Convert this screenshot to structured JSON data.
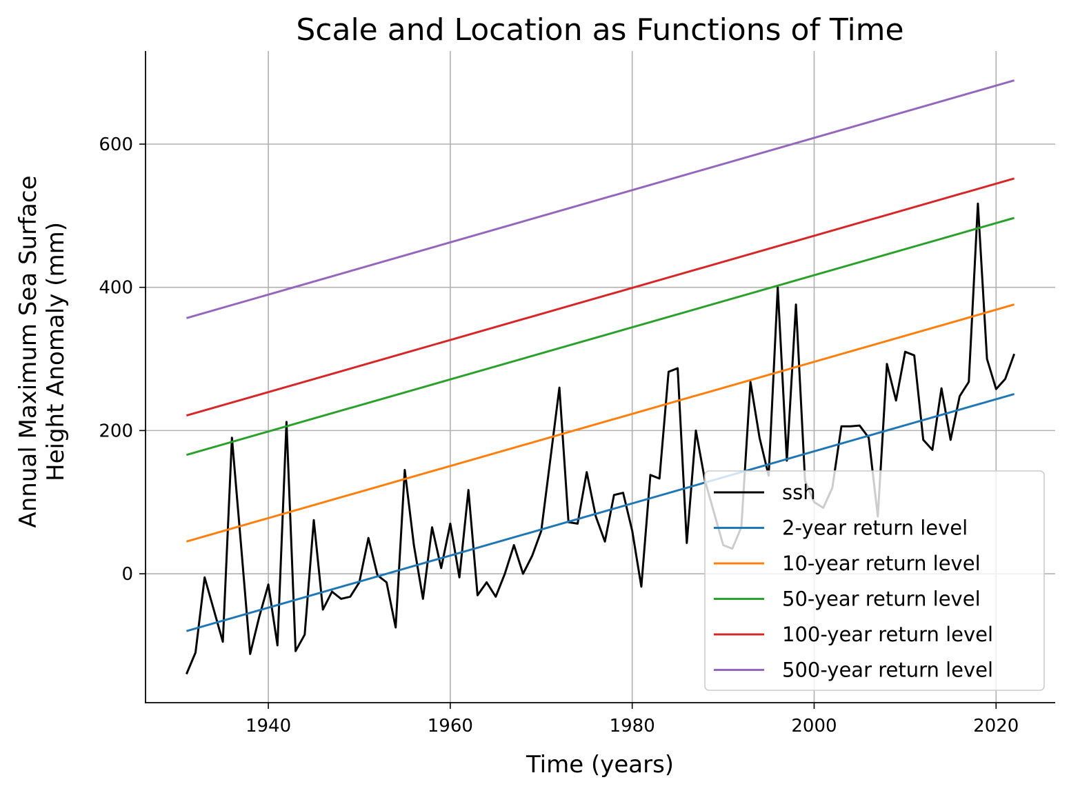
{
  "chart_data": {
    "type": "line",
    "title": "Scale and Location as Functions of Time",
    "xlabel": "Time (years)",
    "ylabel_lines": [
      "Annual Maximum Sea Surface",
      "Height Anomaly (mm)"
    ],
    "xlim": [
      1926.5,
      2026.5
    ],
    "ylim": [
      -180,
      730
    ],
    "xticks": [
      1940,
      1960,
      1980,
      2000,
      2020
    ],
    "yticks": [
      0,
      200,
      400,
      600
    ],
    "grid": true,
    "legend_position": "lower-right",
    "ssh": {
      "name": "ssh",
      "color": "#000000",
      "x": [
        1931,
        1932,
        1933,
        1934,
        1935,
        1936,
        1937,
        1938,
        1939,
        1940,
        1941,
        1942,
        1943,
        1944,
        1945,
        1946,
        1947,
        1948,
        1949,
        1950,
        1951,
        1952,
        1953,
        1954,
        1955,
        1956,
        1957,
        1958,
        1959,
        1960,
        1961,
        1962,
        1963,
        1964,
        1965,
        1966,
        1967,
        1968,
        1969,
        1970,
        1971,
        1972,
        1973,
        1974,
        1975,
        1976,
        1977,
        1978,
        1979,
        1980,
        1981,
        1982,
        1983,
        1984,
        1985,
        1986,
        1987,
        1988,
        1989,
        1990,
        1991,
        1992,
        1993,
        1994,
        1995,
        1996,
        1997,
        1998,
        1999,
        2000,
        2001,
        2002,
        2003,
        2004,
        2005,
        2006,
        2007,
        2008,
        2009,
        2010,
        2011,
        2012,
        2013,
        2014,
        2015,
        2016,
        2017,
        2018,
        2019,
        2020,
        2021,
        2022
      ],
      "y": [
        -140,
        -110,
        -5,
        -50,
        -95,
        190,
        40,
        -112,
        -60,
        -15,
        -100,
        212,
        -108,
        -85,
        75,
        -50,
        -25,
        -35,
        -32,
        -12,
        50,
        -2,
        -12,
        -75,
        145,
        40,
        -35,
        65,
        8,
        70,
        -5,
        117,
        -30,
        -12,
        -32,
        0,
        40,
        0,
        25,
        60,
        160,
        260,
        72,
        70,
        142,
        80,
        45,
        110,
        113,
        60,
        -18,
        138,
        133,
        282,
        287,
        43,
        200,
        130,
        85,
        40,
        35,
        65,
        268,
        190,
        137,
        400,
        158,
        376,
        130,
        100,
        92,
        120,
        206,
        206,
        207,
        190,
        80,
        293,
        242,
        310,
        305,
        187,
        173,
        259,
        187,
        248,
        268,
        517,
        300,
        258,
        272,
        307
      ]
    },
    "return_levels": [
      {
        "name": "2-year return level",
        "color": "#1f77b4",
        "x": [
          1931,
          2022
        ],
        "y": [
          -80,
          251
        ]
      },
      {
        "name": "10-year return level",
        "color": "#ff7f0e",
        "x": [
          1931,
          2022
        ],
        "y": [
          45,
          376
        ]
      },
      {
        "name": "50-year return level",
        "color": "#2ca02c",
        "x": [
          1931,
          2022
        ],
        "y": [
          166,
          497
        ]
      },
      {
        "name": "100-year return level",
        "color": "#d62728",
        "x": [
          1931,
          2022
        ],
        "y": [
          221,
          552
        ]
      },
      {
        "name": "500-year return level",
        "color": "#9467bd",
        "x": [
          1931,
          2022
        ],
        "y": [
          357,
          689
        ]
      }
    ]
  }
}
